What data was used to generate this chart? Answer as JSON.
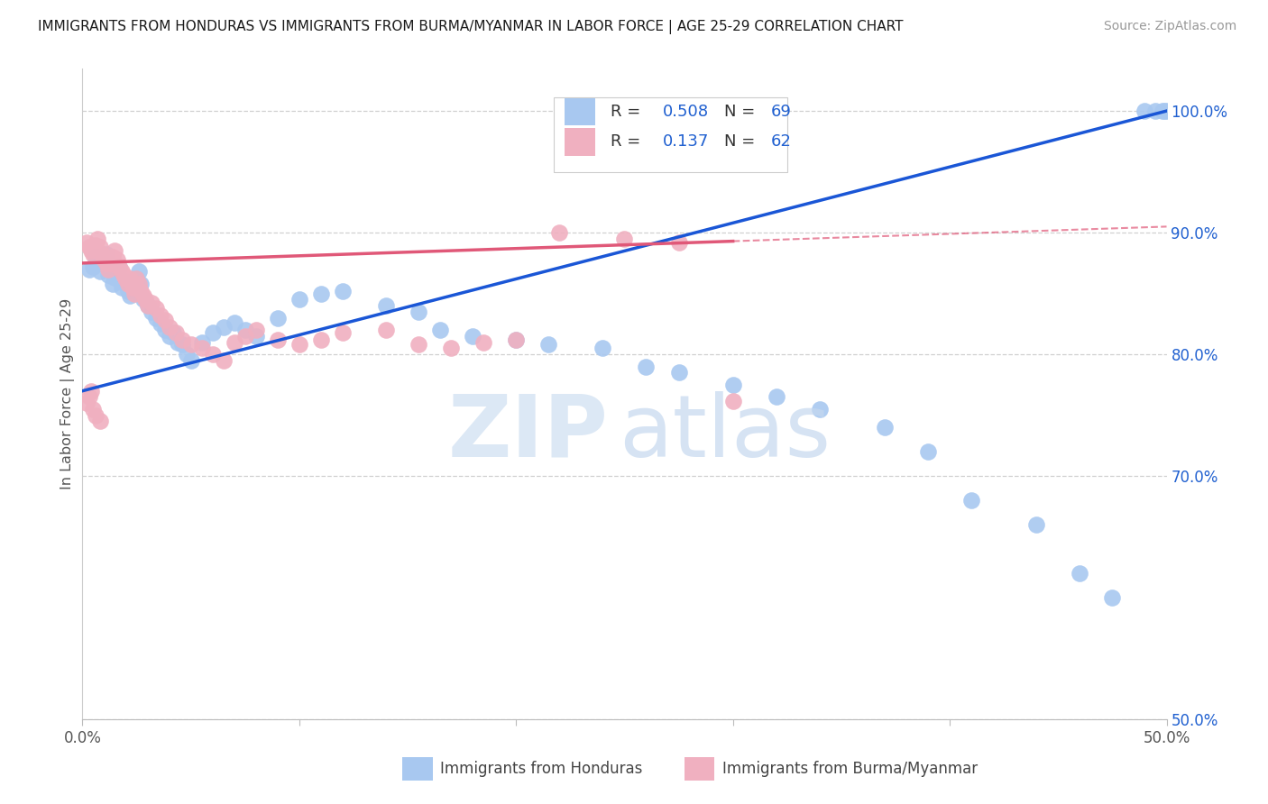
{
  "title": "IMMIGRANTS FROM HONDURAS VS IMMIGRANTS FROM BURMA/MYANMAR IN LABOR FORCE | AGE 25-29 CORRELATION CHART",
  "source": "Source: ZipAtlas.com",
  "ylabel": "In Labor Force | Age 25-29",
  "yaxis_labels": [
    "50.0%",
    "70.0%",
    "80.0%",
    "90.0%",
    "100.0%"
  ],
  "yaxis_values": [
    0.5,
    0.7,
    0.8,
    0.9,
    1.0
  ],
  "xlim": [
    0.0,
    0.5
  ],
  "ylim": [
    0.5,
    1.035
  ],
  "R_blue": 0.508,
  "N_blue": 69,
  "R_pink": 0.137,
  "N_pink": 62,
  "blue_color": "#a8c8f0",
  "pink_color": "#f0b0c0",
  "blue_line_color": "#1a56d6",
  "pink_line_color": "#e05878",
  "legend_R_color": "#2060d0",
  "grid_color": "#d0d0d0",
  "background_color": "#ffffff",
  "blue_scatter_x": [
    0.003,
    0.005,
    0.006,
    0.007,
    0.008,
    0.009,
    0.01,
    0.011,
    0.012,
    0.013,
    0.014,
    0.015,
    0.016,
    0.017,
    0.018,
    0.019,
    0.02,
    0.021,
    0.022,
    0.023,
    0.024,
    0.025,
    0.026,
    0.027,
    0.028,
    0.03,
    0.032,
    0.034,
    0.036,
    0.038,
    0.04,
    0.042,
    0.044,
    0.046,
    0.048,
    0.05,
    0.055,
    0.06,
    0.065,
    0.07,
    0.075,
    0.08,
    0.09,
    0.1,
    0.11,
    0.12,
    0.14,
    0.155,
    0.165,
    0.18,
    0.2,
    0.215,
    0.24,
    0.26,
    0.275,
    0.3,
    0.32,
    0.34,
    0.37,
    0.39,
    0.41,
    0.44,
    0.46,
    0.475,
    0.49,
    0.495,
    0.498,
    0.499,
    0.5
  ],
  "blue_scatter_y": [
    0.87,
    0.872,
    0.88,
    0.875,
    0.868,
    0.875,
    0.878,
    0.882,
    0.865,
    0.87,
    0.858,
    0.863,
    0.868,
    0.872,
    0.855,
    0.86,
    0.858,
    0.852,
    0.848,
    0.855,
    0.852,
    0.862,
    0.868,
    0.858,
    0.845,
    0.84,
    0.835,
    0.83,
    0.825,
    0.82,
    0.815,
    0.818,
    0.81,
    0.808,
    0.8,
    0.795,
    0.81,
    0.818,
    0.822,
    0.826,
    0.82,
    0.815,
    0.83,
    0.845,
    0.85,
    0.852,
    0.84,
    0.835,
    0.82,
    0.815,
    0.812,
    0.808,
    0.805,
    0.79,
    0.785,
    0.775,
    0.765,
    0.755,
    0.74,
    0.72,
    0.68,
    0.66,
    0.62,
    0.6,
    1.0,
    1.0,
    1.0,
    1.0,
    1.0
  ],
  "pink_scatter_x": [
    0.002,
    0.003,
    0.004,
    0.005,
    0.006,
    0.007,
    0.008,
    0.009,
    0.01,
    0.011,
    0.012,
    0.013,
    0.014,
    0.015,
    0.016,
    0.017,
    0.018,
    0.019,
    0.02,
    0.021,
    0.022,
    0.023,
    0.024,
    0.025,
    0.026,
    0.027,
    0.028,
    0.029,
    0.03,
    0.032,
    0.034,
    0.036,
    0.038,
    0.04,
    0.043,
    0.046,
    0.05,
    0.055,
    0.06,
    0.065,
    0.07,
    0.075,
    0.08,
    0.09,
    0.1,
    0.11,
    0.12,
    0.14,
    0.155,
    0.17,
    0.185,
    0.2,
    0.22,
    0.25,
    0.275,
    0.3,
    0.002,
    0.003,
    0.004,
    0.005,
    0.006,
    0.008
  ],
  "pink_scatter_y": [
    0.892,
    0.888,
    0.885,
    0.882,
    0.89,
    0.895,
    0.888,
    0.882,
    0.878,
    0.875,
    0.87,
    0.875,
    0.88,
    0.885,
    0.878,
    0.872,
    0.868,
    0.865,
    0.862,
    0.858,
    0.862,
    0.855,
    0.85,
    0.862,
    0.858,
    0.852,
    0.848,
    0.845,
    0.84,
    0.842,
    0.838,
    0.832,
    0.828,
    0.822,
    0.818,
    0.812,
    0.808,
    0.805,
    0.8,
    0.795,
    0.81,
    0.815,
    0.82,
    0.812,
    0.808,
    0.812,
    0.818,
    0.82,
    0.808,
    0.805,
    0.81,
    0.812,
    0.9,
    0.895,
    0.892,
    0.762,
    0.76,
    0.765,
    0.77,
    0.755,
    0.75,
    0.745
  ]
}
